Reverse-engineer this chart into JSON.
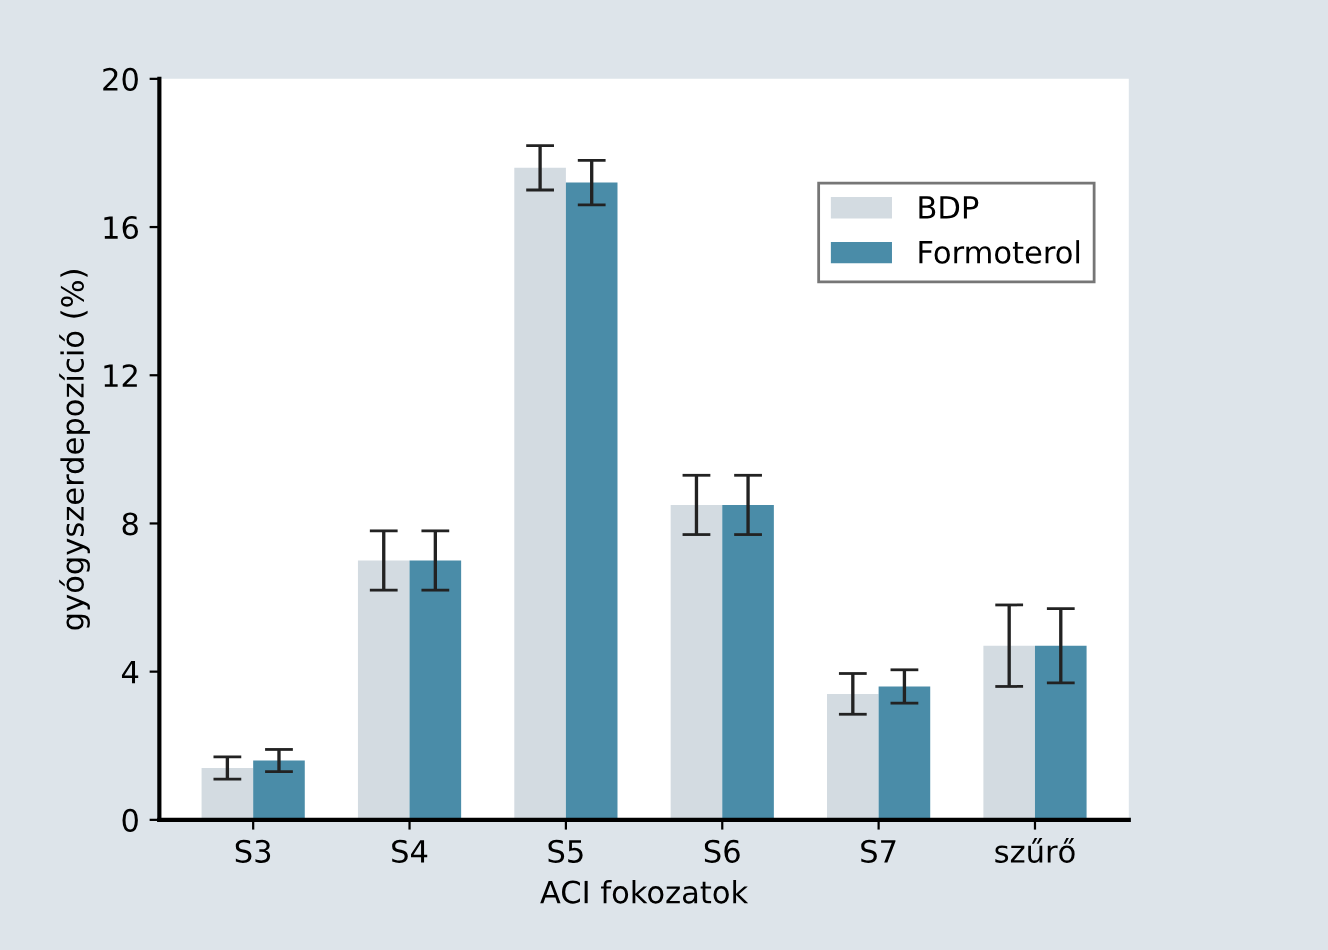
{
  "chart_data": {
    "type": "bar",
    "xlabel": "ACI fokozatok",
    "ylabel": "gyógyszerdepozíció (%)",
    "categories": [
      "S3",
      "S4",
      "S5",
      "S6",
      "S7",
      "szűrő"
    ],
    "series": [
      {
        "name": "BDP",
        "color": "#d3dbe1",
        "values": [
          1.4,
          7.0,
          17.6,
          8.5,
          3.4,
          4.7
        ],
        "errors": [
          0.3,
          0.8,
          0.6,
          0.8,
          0.55,
          1.1
        ]
      },
      {
        "name": "Formoterol",
        "color": "#4a8ca8",
        "values": [
          1.6,
          7.0,
          17.2,
          8.5,
          3.6,
          4.7
        ],
        "errors": [
          0.3,
          0.8,
          0.6,
          0.8,
          0.45,
          1.0
        ]
      }
    ],
    "ylim": [
      0,
      20
    ],
    "yticks": [
      0,
      4,
      8,
      12,
      16,
      20
    ],
    "grid": false,
    "legend": "top right"
  }
}
